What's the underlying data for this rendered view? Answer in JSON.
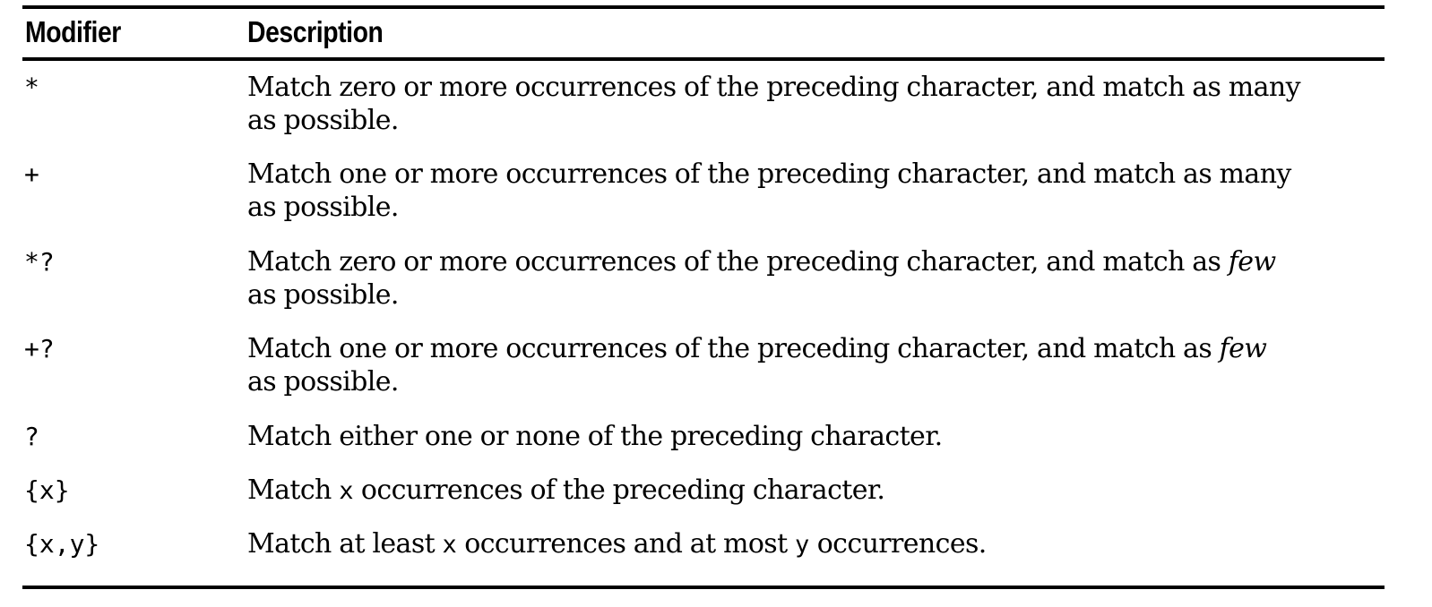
{
  "table": {
    "headers": {
      "modifier": "Modifier",
      "description": "Description"
    },
    "rows": [
      {
        "modifier": "*",
        "line1": "Match zero or more occurrences of the preceding character, and match as many",
        "line2": "as possible."
      },
      {
        "modifier": "+",
        "line1": "Match one or more occurrences of the preceding character, and match as many",
        "line2": "as possible."
      },
      {
        "modifier": "*?",
        "line1a": "Match zero or more occurrences of the preceding character, and match as ",
        "line1em": "few",
        "line2": "as possible."
      },
      {
        "modifier": "+?",
        "line1a": "Match one or more occurrences of the preceding character, and match as ",
        "line1em": "few",
        "line2": "as possible."
      },
      {
        "modifier": "?",
        "line1": "Match either one or none of the preceding character."
      },
      {
        "modifier": "{x}",
        "pre": "Match ",
        "code1": "x",
        "post": " occurrences of the preceding character."
      },
      {
        "modifier": "{x,y}",
        "pre": "Match at least ",
        "code1": "x",
        "mid": " occurrences and at most ",
        "code2": "y",
        "post": " occurrences."
      }
    ]
  }
}
